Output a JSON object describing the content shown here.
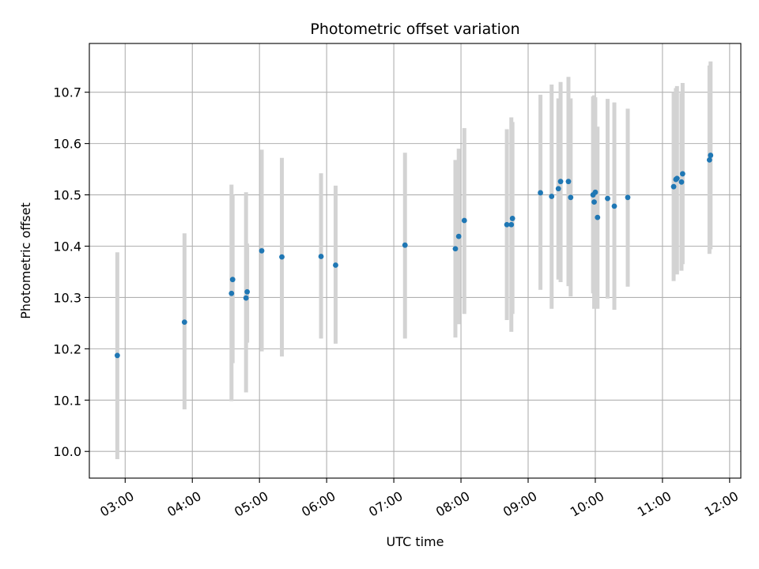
{
  "chart_data": {
    "type": "scatter",
    "title": "Photometric offset variation",
    "xlabel": "UTC time",
    "ylabel": "Photometric offset",
    "grid": true,
    "x_unit": "UTC time of day",
    "xlim": [
      "02:28",
      "12:10"
    ],
    "ylim": [
      9.948,
      10.795
    ],
    "x_ticks": [
      "03:00",
      "04:00",
      "05:00",
      "06:00",
      "07:00",
      "08:00",
      "09:00",
      "10:00",
      "11:00",
      "12:00"
    ],
    "y_ticks": [
      "10.0",
      "10.1",
      "10.2",
      "10.3",
      "10.4",
      "10.5",
      "10.6",
      "10.7"
    ],
    "marker_color": "#1f77b4",
    "errorbar_color": "#d3d3d3",
    "points": [
      {
        "time": "02:53",
        "value": 10.187,
        "low": 9.985,
        "high": 10.388
      },
      {
        "time": "03:53",
        "value": 10.252,
        "low": 10.082,
        "high": 10.425
      },
      {
        "time": "04:35",
        "value": 10.308,
        "low": 10.098,
        "high": 10.52
      },
      {
        "time": "04:36",
        "value": 10.335,
        "low": 10.172,
        "high": 10.5
      },
      {
        "time": "04:48",
        "value": 10.299,
        "low": 10.115,
        "high": 10.505
      },
      {
        "time": "04:49",
        "value": 10.311,
        "low": 10.212,
        "high": 10.405
      },
      {
        "time": "05:02",
        "value": 10.391,
        "low": 10.195,
        "high": 10.588
      },
      {
        "time": "05:20",
        "value": 10.379,
        "low": 10.185,
        "high": 10.572
      },
      {
        "time": "05:55",
        "value": 10.38,
        "low": 10.22,
        "high": 10.542
      },
      {
        "time": "06:08",
        "value": 10.363,
        "low": 10.21,
        "high": 10.518
      },
      {
        "time": "07:10",
        "value": 10.402,
        "low": 10.22,
        "high": 10.582
      },
      {
        "time": "07:55",
        "value": 10.395,
        "low": 10.222,
        "high": 10.568
      },
      {
        "time": "07:58",
        "value": 10.419,
        "low": 10.248,
        "high": 10.59
      },
      {
        "time": "08:03",
        "value": 10.45,
        "low": 10.268,
        "high": 10.63
      },
      {
        "time": "08:41",
        "value": 10.442,
        "low": 10.256,
        "high": 10.628
      },
      {
        "time": "08:45",
        "value": 10.442,
        "low": 10.233,
        "high": 10.651
      },
      {
        "time": "08:46",
        "value": 10.454,
        "low": 10.268,
        "high": 10.642
      },
      {
        "time": "09:11",
        "value": 10.504,
        "low": 10.315,
        "high": 10.695
      },
      {
        "time": "09:21",
        "value": 10.497,
        "low": 10.278,
        "high": 10.715
      },
      {
        "time": "09:27",
        "value": 10.512,
        "low": 10.335,
        "high": 10.688
      },
      {
        "time": "09:29",
        "value": 10.526,
        "low": 10.33,
        "high": 10.72
      },
      {
        "time": "09:36",
        "value": 10.526,
        "low": 10.322,
        "high": 10.73
      },
      {
        "time": "09:38",
        "value": 10.495,
        "low": 10.302,
        "high": 10.688
      },
      {
        "time": "09:58",
        "value": 10.5,
        "low": 10.308,
        "high": 10.692
      },
      {
        "time": "09:59",
        "value": 10.486,
        "low": 10.278,
        "high": 10.694
      },
      {
        "time": "10:00",
        "value": 10.505,
        "low": 10.32,
        "high": 10.69
      },
      {
        "time": "10:02",
        "value": 10.456,
        "low": 10.278,
        "high": 10.633
      },
      {
        "time": "10:11",
        "value": 10.493,
        "low": 10.298,
        "high": 10.687
      },
      {
        "time": "10:17",
        "value": 10.478,
        "low": 10.276,
        "high": 10.68
      },
      {
        "time": "10:29",
        "value": 10.495,
        "low": 10.321,
        "high": 10.668
      },
      {
        "time": "11:10",
        "value": 10.516,
        "low": 10.332,
        "high": 10.7
      },
      {
        "time": "11:12",
        "value": 10.53,
        "low": 10.35,
        "high": 10.708
      },
      {
        "time": "11:13",
        "value": 10.532,
        "low": 10.345,
        "high": 10.712
      },
      {
        "time": "11:17",
        "value": 10.525,
        "low": 10.352,
        "high": 10.698
      },
      {
        "time": "11:18",
        "value": 10.541,
        "low": 10.365,
        "high": 10.718
      },
      {
        "time": "11:42",
        "value": 10.568,
        "low": 10.385,
        "high": 10.752
      },
      {
        "time": "11:43",
        "value": 10.577,
        "low": 10.394,
        "high": 10.76
      }
    ]
  }
}
